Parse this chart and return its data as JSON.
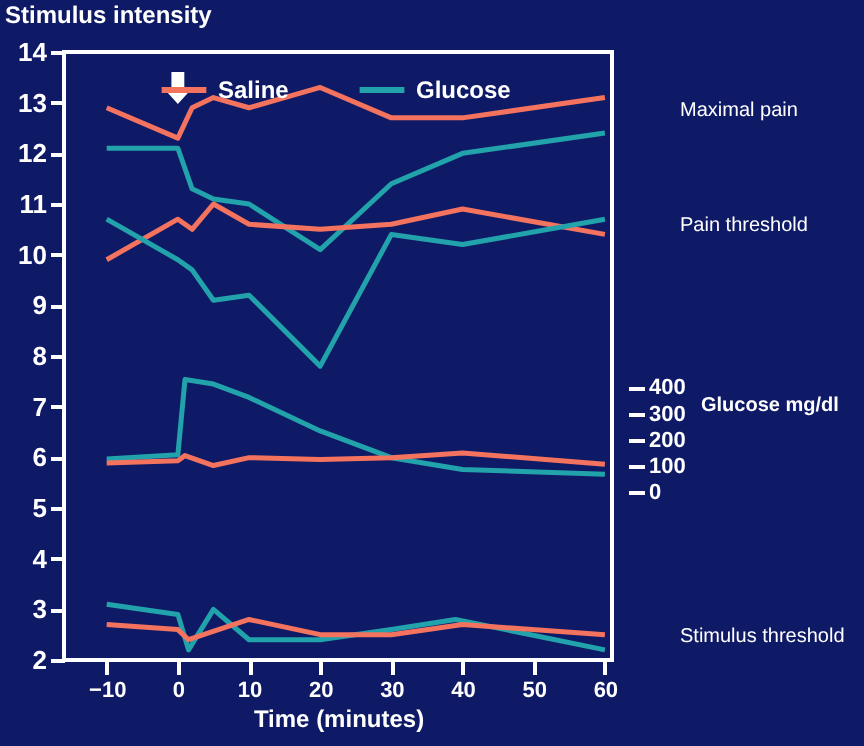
{
  "chart_data": {
    "type": "line",
    "xlabel": "Time (minutes)",
    "ylabel": "Stimulus intensity",
    "y2label": "Glucose mg/dl",
    "xlim": [
      -16,
      61
    ],
    "xticks": [
      -10,
      0,
      10,
      20,
      30,
      40,
      50,
      60
    ],
    "ylim": [
      2,
      14
    ],
    "yticks": [
      2,
      3,
      4,
      5,
      6,
      7,
      8,
      9,
      10,
      11,
      12,
      13,
      14
    ],
    "y2lim": [
      -640,
      1680
    ],
    "y2ticks": [
      0,
      100,
      200,
      300,
      400
    ],
    "legend": "top",
    "grid": false,
    "series": [
      {
        "name": "Saline",
        "color": "#f4735f",
        "x": [
          -10,
          0,
          2,
          5,
          10,
          20,
          30,
          40,
          60
        ],
        "values": [
          12.9,
          12.3,
          12.9,
          13.1,
          12.9,
          13.3,
          12.7,
          12.7,
          13.1
        ]
      },
      {
        "name": "Glucose",
        "color": "#22a3ab",
        "x": [
          -10,
          0,
          2,
          5,
          10,
          20,
          30,
          40,
          60
        ],
        "values": [
          12.1,
          12.1,
          11.3,
          11.1,
          11.0,
          10.1,
          11.4,
          12.0,
          12.4
        ]
      },
      {
        "color": "#f4735f",
        "x": [
          -10,
          0,
          2,
          5,
          10,
          20,
          30,
          40,
          60
        ],
        "values": [
          9.9,
          10.7,
          10.5,
          11.0,
          10.6,
          10.5,
          10.6,
          10.9,
          10.4
        ]
      },
      {
        "color": "#22a3ab",
        "x": [
          -10,
          0,
          2,
          5,
          10,
          20,
          30,
          40,
          60
        ],
        "values": [
          10.7,
          9.9,
          9.7,
          9.1,
          9.2,
          7.8,
          10.4,
          10.2,
          10.7
        ]
      },
      {
        "color": "#22a3ab",
        "axis": "y2",
        "x": [
          -10,
          0,
          1,
          5,
          10,
          20,
          30,
          40,
          60
        ],
        "values": [
          127,
          143,
          430,
          413,
          362,
          234,
          132,
          87,
          69
        ]
      },
      {
        "color": "#f4735f",
        "axis": "y2",
        "x": [
          -10,
          0,
          1,
          5,
          10,
          20,
          30,
          40,
          60
        ],
        "values": [
          112,
          120,
          140,
          102,
          132,
          125,
          132,
          150,
          107
        ]
      },
      {
        "color": "#22a3ab",
        "x": [
          -10,
          0,
          1.5,
          5,
          10,
          20,
          30,
          39,
          60
        ],
        "values": [
          3.1,
          2.9,
          2.2,
          3.0,
          2.4,
          2.4,
          2.6,
          2.8,
          2.2
        ]
      },
      {
        "color": "#f4735f",
        "x": [
          -10,
          0,
          1.5,
          10,
          20,
          30,
          40,
          60
        ],
        "values": [
          2.7,
          2.6,
          2.4,
          2.8,
          2.5,
          2.5,
          2.7,
          2.5
        ]
      }
    ],
    "annotations": [
      "Maximal pain",
      "Pain threshold",
      "Stimulus threshold"
    ]
  }
}
